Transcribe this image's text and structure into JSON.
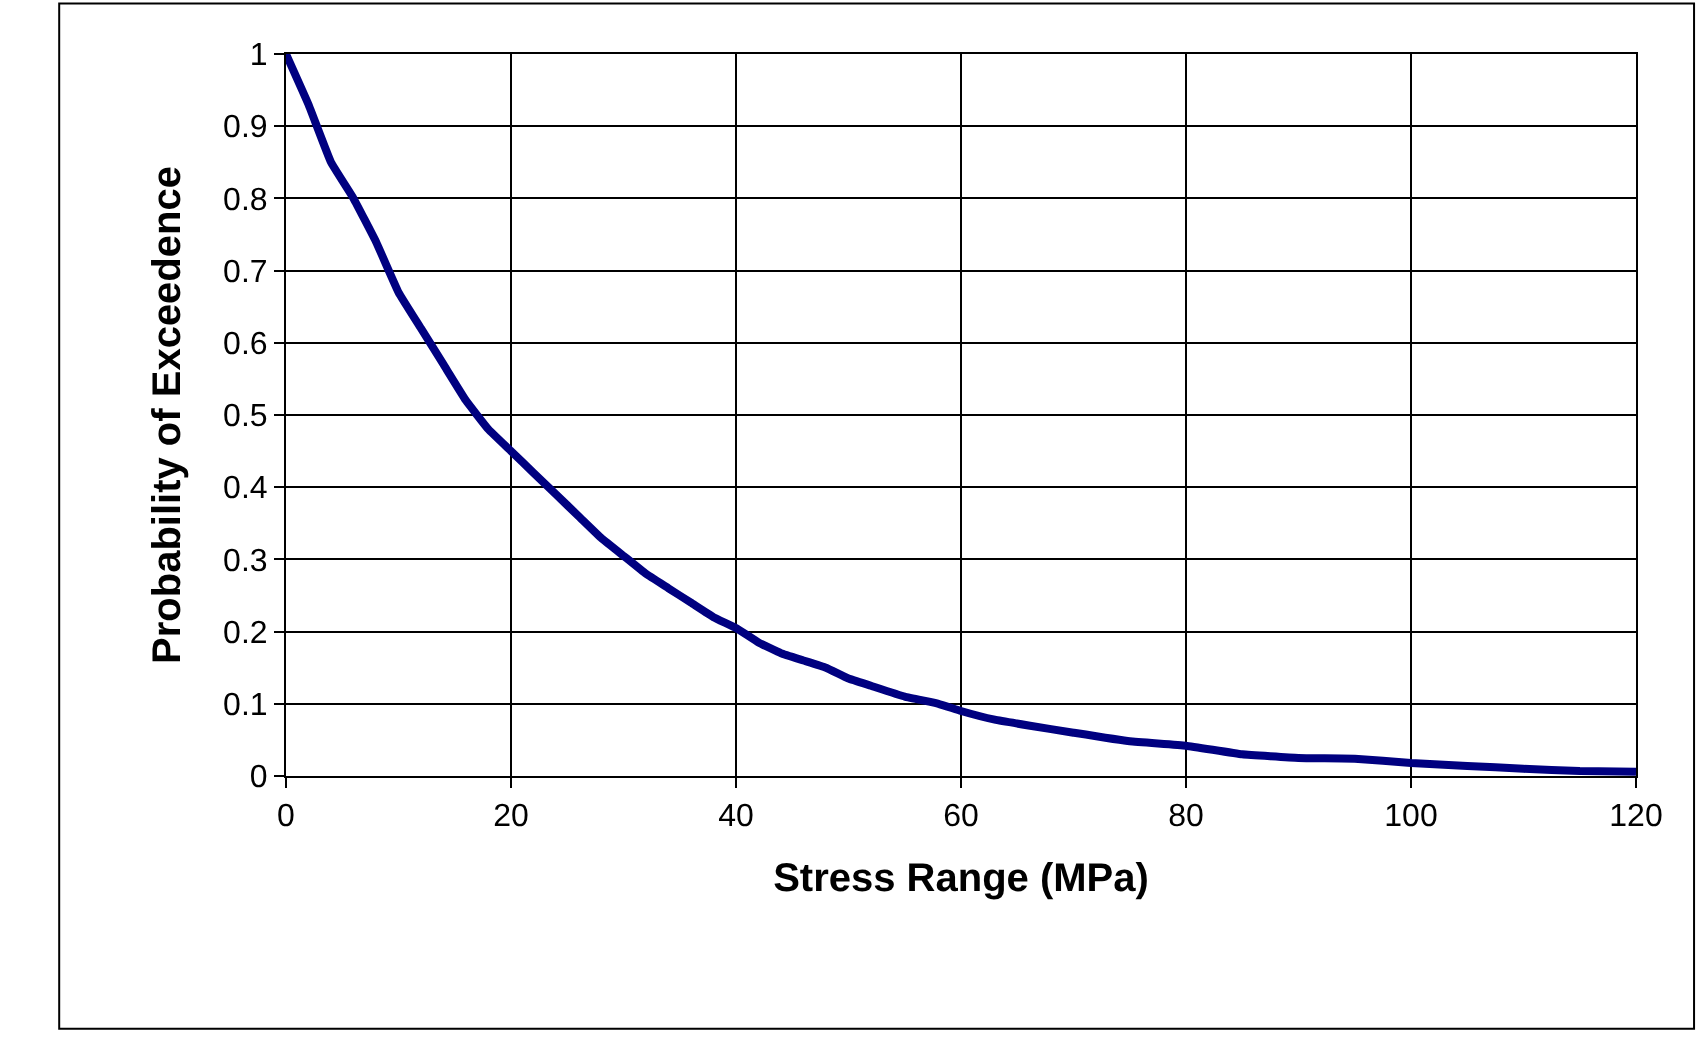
{
  "chart_data": {
    "type": "line",
    "xlabel": "Stress Range (MPa)",
    "ylabel": "Probability of Exceedence",
    "x": [
      0,
      2,
      4,
      6,
      8,
      10,
      12,
      14,
      16,
      18,
      20,
      22,
      24,
      26,
      28,
      30,
      32,
      34,
      36,
      38,
      40,
      42,
      44,
      46,
      48,
      50,
      52,
      55,
      58,
      60,
      63,
      66,
      70,
      75,
      80,
      85,
      90,
      95,
      100,
      105,
      110,
      115,
      120
    ],
    "series": [
      {
        "color": "#000080",
        "values": [
          1,
          0.93,
          0.85,
          0.8,
          0.74,
          0.67,
          0.62,
          0.57,
          0.52,
          0.48,
          0.45,
          0.42,
          0.39,
          0.36,
          0.33,
          0.305,
          0.28,
          0.26,
          0.24,
          0.22,
          0.205,
          0.185,
          0.17,
          0.16,
          0.15,
          0.135,
          0.125,
          0.11,
          0.1,
          0.09,
          0.078,
          0.07,
          0.06,
          0.048,
          0.042,
          0.03,
          0.025,
          0.024,
          0.018,
          0.014,
          0.01,
          0.007,
          0.006
        ]
      }
    ],
    "xlim": [
      0,
      120
    ],
    "xticks": [
      0,
      20,
      40,
      60,
      80,
      100,
      120
    ],
    "ylim": [
      0,
      1
    ],
    "yticks": [
      0,
      0.1,
      0.2,
      0.3,
      0.4,
      0.5,
      0.6,
      0.7,
      0.8,
      0.9,
      1
    ],
    "grid": true,
    "legend": false,
    "marker": "none",
    "line_style": "solid"
  }
}
